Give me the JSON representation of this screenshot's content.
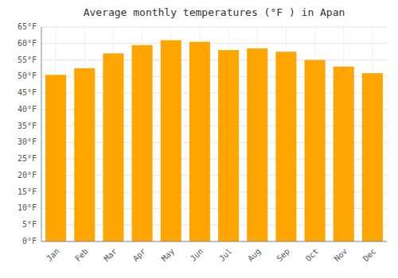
{
  "chart_data": {
    "type": "bar",
    "title": "Average monthly temperatures (°F ) in Apan",
    "categories": [
      "Jan",
      "Feb",
      "Mar",
      "Apr",
      "May",
      "Jun",
      "Jul",
      "Aug",
      "Sep",
      "Oct",
      "Nov",
      "Dec"
    ],
    "values": [
      50.5,
      52.5,
      57.0,
      59.5,
      61.0,
      60.5,
      58.0,
      58.5,
      57.5,
      55.0,
      53.0,
      51.0
    ],
    "color": "#FFA500",
    "ylim": [
      0,
      65
    ],
    "yticks": [
      {
        "value": 0,
        "label": "0°F"
      },
      {
        "value": 5,
        "label": "5°F"
      },
      {
        "value": 10,
        "label": "10°F"
      },
      {
        "value": 15,
        "label": "15°F"
      },
      {
        "value": 20,
        "label": "20°F"
      },
      {
        "value": 25,
        "label": "25°F"
      },
      {
        "value": 30,
        "label": "30°F"
      },
      {
        "value": 35,
        "label": "35°F"
      },
      {
        "value": 40,
        "label": "40°F"
      },
      {
        "value": 45,
        "label": "45°F"
      },
      {
        "value": 50,
        "label": "50°F"
      },
      {
        "value": 55,
        "label": "55°F"
      },
      {
        "value": 60,
        "label": "60°F"
      },
      {
        "value": 65,
        "label": "65°F"
      }
    ],
    "grid": true
  }
}
